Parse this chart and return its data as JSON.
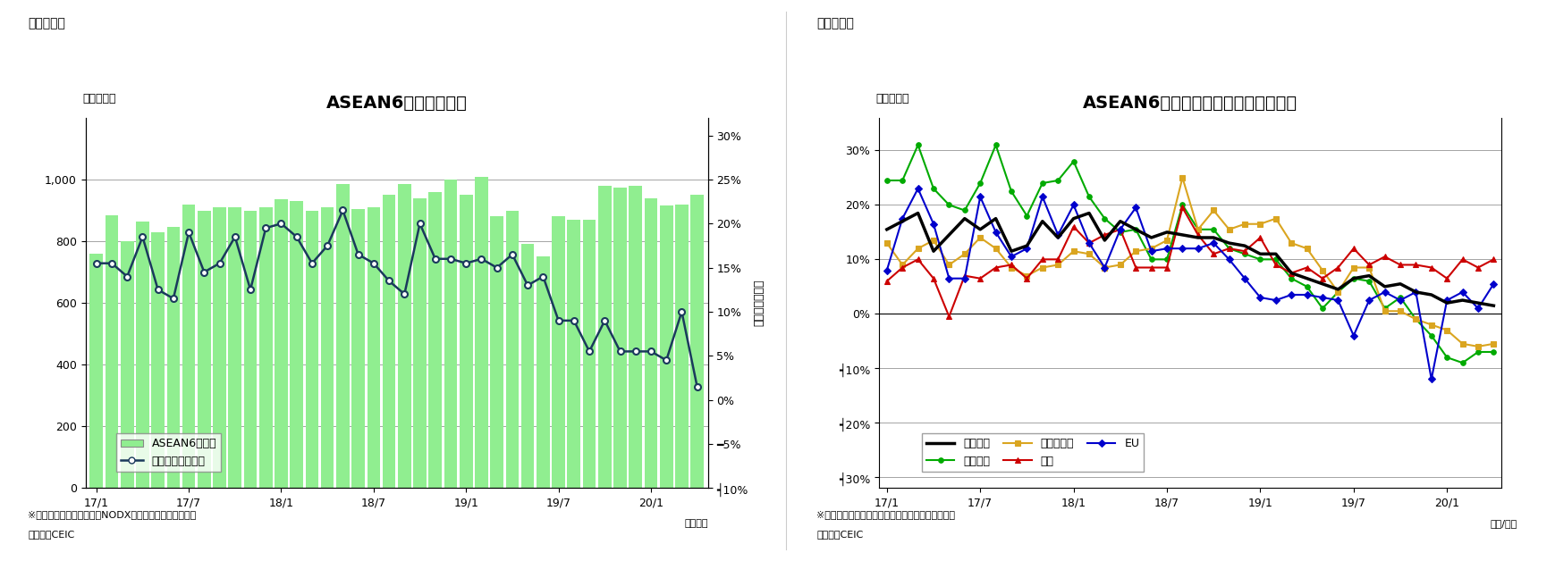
{
  "chart1": {
    "title": "ASEAN6カ国の輸出額",
    "subtitle_left": "（図表１）",
    "ylabel_left": "（億ドル）",
    "ylabel_right": "（前年同月比）",
    "xlabel": "（年月）",
    "note1": "※シンガポールの輸出額はNODX（石油と再輸出除く）。",
    "note2": "（資料）CEIC",
    "bar_color": "#90EE90",
    "line_color": "#1a3a5c",
    "ylim_left": [
      0,
      1200
    ],
    "ylim_right": [
      -0.1,
      0.32
    ],
    "yticks_left": [
      0,
      200,
      400,
      600,
      800,
      1000
    ],
    "ytick_labels_left": [
      "0",
      "200",
      "400",
      "600",
      "800",
      "1,000"
    ],
    "yticks_right": [
      -0.1,
      -0.05,
      0.0,
      0.05,
      0.1,
      0.15,
      0.2,
      0.25,
      0.3
    ],
    "ytick_labels_right": [
      "┥10%",
      "━5%",
      "0%",
      "5%",
      "10%",
      "15%",
      "20%",
      "25%",
      "30%"
    ],
    "xtick_positions": [
      0,
      6,
      12,
      18,
      24,
      30,
      36
    ],
    "xtick_labels": [
      "17/1",
      "17/7",
      "18/1",
      "18/7",
      "19/1",
      "19/7",
      "20/1"
    ],
    "bar_values": [
      760,
      885,
      800,
      865,
      830,
      845,
      920,
      900,
      910,
      910,
      900,
      910,
      935,
      930,
      900,
      910,
      985,
      905,
      910,
      950,
      985,
      940,
      960,
      1000,
      950,
      1010,
      880,
      900,
      790,
      750,
      880,
      870,
      870,
      980,
      975,
      980,
      940,
      915,
      920,
      950
    ],
    "line_values": [
      0.155,
      0.155,
      0.14,
      0.185,
      0.125,
      0.115,
      0.19,
      0.145,
      0.155,
      0.185,
      0.125,
      0.195,
      0.2,
      0.185,
      0.155,
      0.175,
      0.215,
      0.165,
      0.155,
      0.135,
      0.12,
      0.2,
      0.16,
      0.16,
      0.155,
      0.16,
      0.15,
      0.165,
      0.13,
      0.14,
      0.09,
      0.09,
      0.055,
      0.09,
      0.055,
      0.055,
      0.055,
      0.045,
      0.1,
      0.015
    ],
    "legend_bar": "ASEAN6カ国計",
    "legend_line": "増加率（右目盛）"
  },
  "chart2": {
    "title": "ASEAN6カ国　仕向け地別の輸出動向",
    "subtitle_left": "（図表２）",
    "ylabel_left": "（前年比）",
    "xlabel": "（年/月）",
    "note1": "※インドネシアは非石油ガス輸出のデータを使用。",
    "note2": "（資料）CEIC",
    "ylim": [
      -0.32,
      0.36
    ],
    "yticks": [
      -0.3,
      -0.2,
      -0.1,
      0.0,
      0.1,
      0.2,
      0.3
    ],
    "ytick_labels": [
      "┥30%",
      "┥20%",
      "┥10%",
      "0%",
      "10%",
      "20%",
      "30%"
    ],
    "xtick_positions": [
      0,
      6,
      12,
      18,
      24,
      30,
      36
    ],
    "xtick_labels": [
      "17/1",
      "17/7",
      "18/1",
      "18/7",
      "19/1",
      "19/7",
      "20/1"
    ],
    "n_points": 40,
    "series": {
      "輸出全体": {
        "color": "#000000",
        "linewidth": 2.5,
        "marker": null,
        "markersize": 0,
        "values": [
          0.155,
          0.17,
          0.185,
          0.115,
          0.145,
          0.175,
          0.155,
          0.175,
          0.115,
          0.125,
          0.17,
          0.14,
          0.175,
          0.185,
          0.135,
          0.17,
          0.155,
          0.14,
          0.15,
          0.145,
          0.14,
          0.14,
          0.13,
          0.125,
          0.11,
          0.11,
          0.075,
          0.065,
          0.055,
          0.045,
          0.065,
          0.07,
          0.05,
          0.055,
          0.04,
          0.035,
          0.02,
          0.025,
          0.02,
          0.015
        ]
      },
      "東アジア": {
        "color": "#00AA00",
        "linewidth": 1.5,
        "marker": "o",
        "markersize": 4,
        "values": [
          0.245,
          0.245,
          0.31,
          0.23,
          0.2,
          0.19,
          0.24,
          0.31,
          0.225,
          0.18,
          0.24,
          0.245,
          0.28,
          0.215,
          0.175,
          0.15,
          0.155,
          0.1,
          0.1,
          0.2,
          0.155,
          0.155,
          0.12,
          0.11,
          0.1,
          0.1,
          0.065,
          0.05,
          0.01,
          0.04,
          0.065,
          0.06,
          0.01,
          0.03,
          -0.01,
          -0.04,
          -0.08,
          -0.09,
          -0.07,
          -0.07
        ]
      },
      "東南アジア": {
        "color": "#DAA520",
        "linewidth": 1.5,
        "marker": "s",
        "markersize": 4,
        "values": [
          0.13,
          0.09,
          0.12,
          0.135,
          0.09,
          0.11,
          0.14,
          0.12,
          0.085,
          0.07,
          0.085,
          0.09,
          0.115,
          0.11,
          0.085,
          0.09,
          0.115,
          0.12,
          0.135,
          0.25,
          0.155,
          0.19,
          0.155,
          0.165,
          0.165,
          0.175,
          0.13,
          0.12,
          0.08,
          0.04,
          0.085,
          0.085,
          0.005,
          0.005,
          -0.01,
          -0.02,
          -0.03,
          -0.055,
          -0.06,
          -0.055
        ]
      },
      "北米": {
        "color": "#CC0000",
        "linewidth": 1.5,
        "marker": "^",
        "markersize": 4,
        "values": [
          0.06,
          0.085,
          0.1,
          0.065,
          -0.005,
          0.07,
          0.065,
          0.085,
          0.09,
          0.065,
          0.1,
          0.1,
          0.16,
          0.13,
          0.145,
          0.155,
          0.085,
          0.085,
          0.085,
          0.195,
          0.145,
          0.11,
          0.12,
          0.115,
          0.14,
          0.09,
          0.075,
          0.085,
          0.065,
          0.085,
          0.12,
          0.09,
          0.105,
          0.09,
          0.09,
          0.085,
          0.065,
          0.1,
          0.085,
          0.1
        ]
      },
      "EU": {
        "color": "#0000CC",
        "linewidth": 1.5,
        "marker": "D",
        "markersize": 4,
        "values": [
          0.08,
          0.175,
          0.23,
          0.165,
          0.065,
          0.065,
          0.215,
          0.15,
          0.105,
          0.12,
          0.215,
          0.145,
          0.2,
          0.13,
          0.085,
          0.155,
          0.195,
          0.115,
          0.12,
          0.12,
          0.12,
          0.13,
          0.1,
          0.065,
          0.03,
          0.025,
          0.035,
          0.035,
          0.03,
          0.025,
          -0.04,
          0.025,
          0.04,
          0.025,
          0.04,
          -0.12,
          0.025,
          0.04,
          0.01,
          0.055
        ]
      }
    },
    "series_order": [
      "輸出全体",
      "東アジア",
      "東南アジア",
      "北米",
      "EU"
    ]
  }
}
